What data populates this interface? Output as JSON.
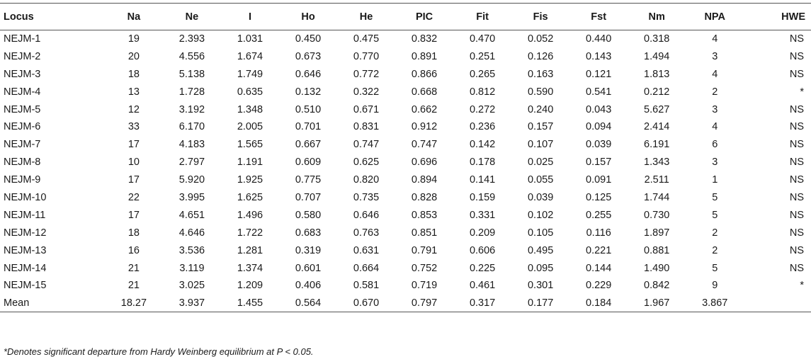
{
  "table": {
    "headers": [
      "Locus",
      "Na",
      "Ne",
      "I",
      "Ho",
      "He",
      "PIC",
      "Fit",
      "Fis",
      "Fst",
      "Nm",
      "NPA",
      "HWE"
    ],
    "rows": [
      [
        "NEJM-1",
        "19",
        "2.393",
        "1.031",
        "0.450",
        "0.475",
        "0.832",
        "0.470",
        "0.052",
        "0.440",
        "0.318",
        "4",
        "NS"
      ],
      [
        "NEJM-2",
        "20",
        "4.556",
        "1.674",
        "0.673",
        "0.770",
        "0.891",
        "0.251",
        "0.126",
        "0.143",
        "1.494",
        "3",
        "NS"
      ],
      [
        "NEJM-3",
        "18",
        "5.138",
        "1.749",
        "0.646",
        "0.772",
        "0.866",
        "0.265",
        "0.163",
        "0.121",
        "1.813",
        "4",
        "NS"
      ],
      [
        "NEJM-4",
        "13",
        "1.728",
        "0.635",
        "0.132",
        "0.322",
        "0.668",
        "0.812",
        "0.590",
        "0.541",
        "0.212",
        "2",
        "*"
      ],
      [
        "NEJM-5",
        "12",
        "3.192",
        "1.348",
        "0.510",
        "0.671",
        "0.662",
        "0.272",
        "0.240",
        "0.043",
        "5.627",
        "3",
        "NS"
      ],
      [
        "NEJM-6",
        "33",
        "6.170",
        "2.005",
        "0.701",
        "0.831",
        "0.912",
        "0.236",
        "0.157",
        "0.094",
        "2.414",
        "4",
        "NS"
      ],
      [
        "NEJM-7",
        "17",
        "4.183",
        "1.565",
        "0.667",
        "0.747",
        "0.747",
        "0.142",
        "0.107",
        "0.039",
        "6.191",
        "6",
        "NS"
      ],
      [
        "NEJM-8",
        "10",
        "2.797",
        "1.191",
        "0.609",
        "0.625",
        "0.696",
        "0.178",
        "0.025",
        "0.157",
        "1.343",
        "3",
        "NS"
      ],
      [
        "NEJM-9",
        "17",
        "5.920",
        "1.925",
        "0.775",
        "0.820",
        "0.894",
        "0.141",
        "0.055",
        "0.091",
        "2.511",
        "1",
        "NS"
      ],
      [
        "NEJM-10",
        "22",
        "3.995",
        "1.625",
        "0.707",
        "0.735",
        "0.828",
        "0.159",
        "0.039",
        "0.125",
        "1.744",
        "5",
        "NS"
      ],
      [
        "NEJM-11",
        "17",
        "4.651",
        "1.496",
        "0.580",
        "0.646",
        "0.853",
        "0.331",
        "0.102",
        "0.255",
        "0.730",
        "5",
        "NS"
      ],
      [
        "NEJM-12",
        "18",
        "4.646",
        "1.722",
        "0.683",
        "0.763",
        "0.851",
        "0.209",
        "0.105",
        "0.116",
        "1.897",
        "2",
        "NS"
      ],
      [
        "NEJM-13",
        "16",
        "3.536",
        "1.281",
        "0.319",
        "0.631",
        "0.791",
        "0.606",
        "0.495",
        "0.221",
        "0.881",
        "2",
        "NS"
      ],
      [
        "NEJM-14",
        "21",
        "3.119",
        "1.374",
        "0.601",
        "0.664",
        "0.752",
        "0.225",
        "0.095",
        "0.144",
        "1.490",
        "5",
        "NS"
      ],
      [
        "NEJM-15",
        "21",
        "3.025",
        "1.209",
        "0.406",
        "0.581",
        "0.719",
        "0.461",
        "0.301",
        "0.229",
        "0.842",
        "9",
        "*"
      ],
      [
        "Mean",
        "18.27",
        "3.937",
        "1.455",
        "0.564",
        "0.670",
        "0.797",
        "0.317",
        "0.177",
        "0.184",
        "1.967",
        "3.867",
        ""
      ]
    ]
  },
  "footnote": "*Denotes significant departure from Hardy Weinberg equilibrium at P < 0.05."
}
